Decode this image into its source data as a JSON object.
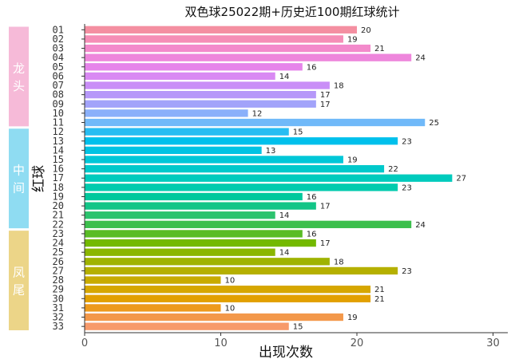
{
  "chart_data": {
    "type": "bar",
    "orientation": "horizontal",
    "title": "双色球25022期+历史近100期红球统计",
    "xlabel": "出现次数",
    "ylabel": "红球",
    "xlim": [
      0,
      30
    ],
    "xticks": [
      0,
      10,
      20,
      30
    ],
    "categories": [
      "01",
      "02",
      "03",
      "04",
      "05",
      "06",
      "07",
      "08",
      "09",
      "10",
      "11",
      "12",
      "13",
      "14",
      "15",
      "16",
      "17",
      "18",
      "19",
      "20",
      "21",
      "22",
      "23",
      "24",
      "25",
      "26",
      "27",
      "28",
      "29",
      "30",
      "31",
      "32",
      "33"
    ],
    "values": [
      20,
      19,
      21,
      24,
      16,
      14,
      18,
      17,
      17,
      12,
      25,
      15,
      23,
      13,
      19,
      22,
      27,
      23,
      16,
      17,
      14,
      24,
      16,
      17,
      14,
      18,
      23,
      10,
      21,
      21,
      10,
      19,
      15
    ],
    "colors": [
      "#f48fa1",
      "#f58eb6",
      "#f38acb",
      "#ee86dc",
      "#e684ea",
      "#d989f3",
      "#c98ef7",
      "#b698f9",
      "#a2a3fa",
      "#8ab0fa",
      "#70b9f9",
      "#27bdf2",
      "#00c0ec",
      "#00c3e3",
      "#00c7d8",
      "#00c9cb",
      "#00cbbd",
      "#00cbae",
      "#00c89d",
      "#12c587",
      "#2cc36e",
      "#3cbf4c",
      "#59bc25",
      "#73b900",
      "#8ab600",
      "#9fb300",
      "#b5b000",
      "#c8ab00",
      "#d6a700",
      "#e2a000",
      "#ed9a1c",
      "#f3984a",
      "#f79a6b"
    ],
    "groups": [
      {
        "label": "龙头",
        "start": 1,
        "end": 11,
        "color": "#f6bad8"
      },
      {
        "label": "中间",
        "start": 12,
        "end": 22,
        "color": "#8fdcf2"
      },
      {
        "label": "凤尾",
        "start": 23,
        "end": 33,
        "color": "#ecd588"
      }
    ],
    "grid": false,
    "legend": "none"
  }
}
